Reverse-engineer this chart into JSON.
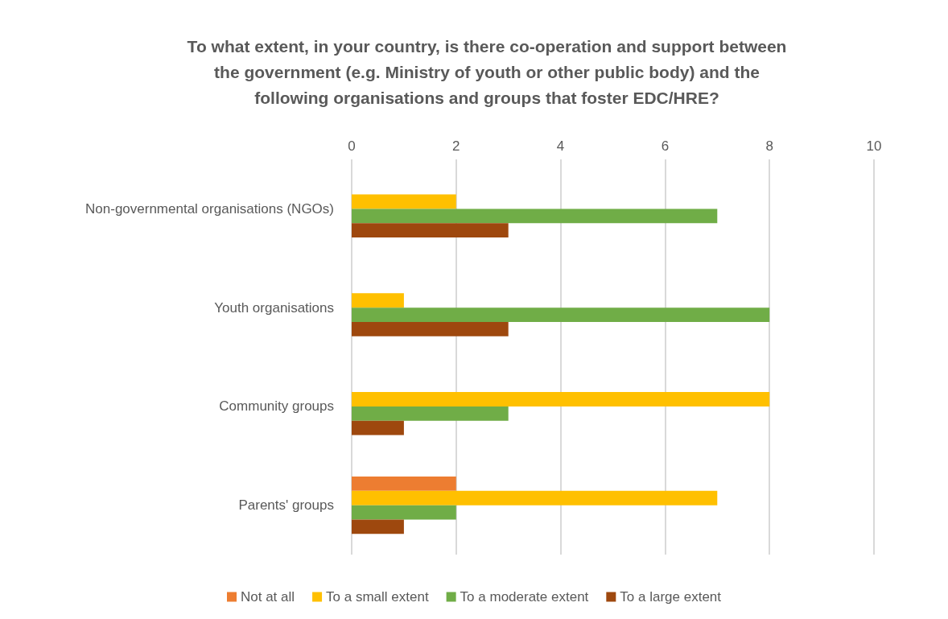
{
  "chart_data": {
    "type": "bar",
    "orientation": "horizontal",
    "title": "To what extent, in your country, is there co-operation and support between\nthe government (e.g. Ministry of youth or other public body) and the\nfollowing organisations and groups that foster EDC/HRE?",
    "categories": [
      "Non-governmental organisations (NGOs)",
      "Youth organisations",
      "Community groups",
      "Parents' groups"
    ],
    "series": [
      {
        "name": "Not at all",
        "color": "#ed7d31",
        "values": [
          0,
          0,
          0,
          2
        ]
      },
      {
        "name": "To a small extent",
        "color": "#ffc000",
        "values": [
          2,
          1,
          8,
          7
        ]
      },
      {
        "name": "To a moderate extent",
        "color": "#70ad47",
        "values": [
          7,
          8,
          3,
          2
        ]
      },
      {
        "name": "To a large extent",
        "color": "#9e480e",
        "values": [
          3,
          3,
          1,
          1
        ]
      }
    ],
    "xlim": [
      0,
      10
    ],
    "xticks": [
      0,
      2,
      4,
      6,
      8,
      10
    ],
    "grid": "x",
    "legend": "bottom"
  }
}
